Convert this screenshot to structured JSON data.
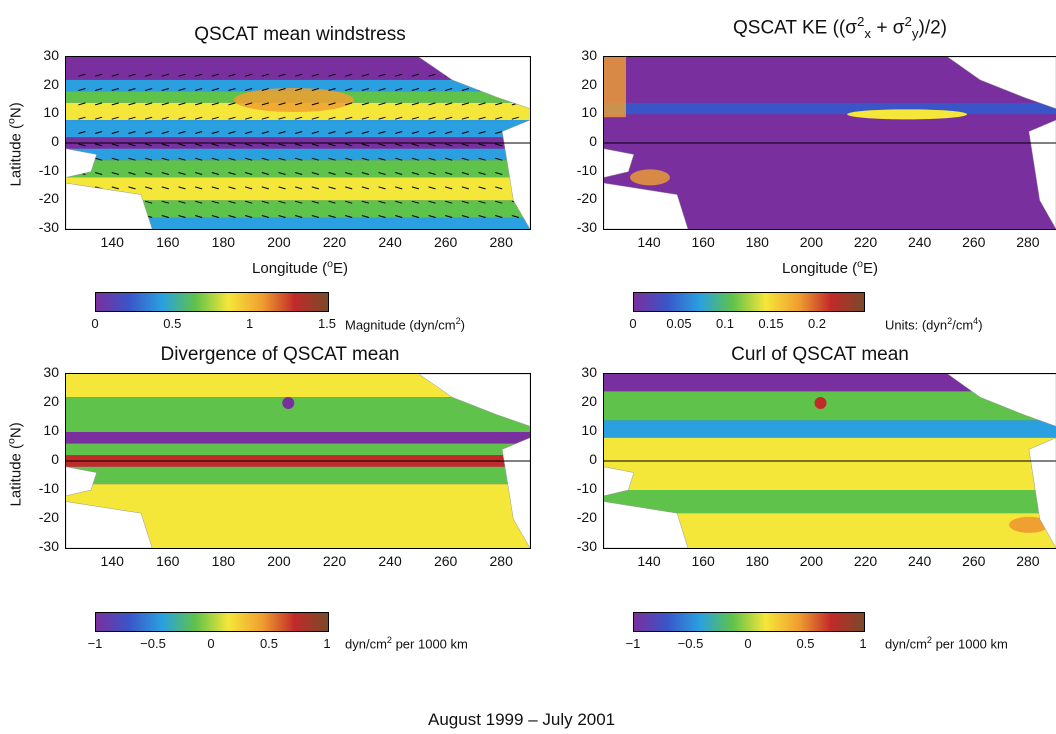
{
  "chart_data": [
    {
      "type": "heatmap",
      "title": "QSCAT mean windstress",
      "xlabel": "Longitude (°E)",
      "ylabel": "Latitude (°N)",
      "xlim": [
        123,
        290
      ],
      "ylim": [
        -30,
        30
      ],
      "xticks": [
        "140",
        "160",
        "180",
        "200",
        "220",
        "240",
        "260",
        "280"
      ],
      "yticks": [
        "30",
        "20",
        "10",
        "0",
        "-10",
        "-20",
        "-30"
      ],
      "colorbar": {
        "ticks": [
          "0",
          "0.5",
          "1",
          "1.5"
        ],
        "label": "Magnitude (dyn/cm",
        "label_sup": "2",
        "label_end": ")",
        "range": [
          0,
          1.5
        ]
      },
      "overlay": "wind vectors"
    },
    {
      "type": "heatmap",
      "title": "QSCAT KE",
      "xlabel": "Longitude (°E)",
      "ylabel": "",
      "xlim": [
        123,
        290
      ],
      "ylim": [
        -30,
        30
      ],
      "xticks": [
        "140",
        "160",
        "180",
        "200",
        "220",
        "240",
        "260",
        "280"
      ],
      "yticks": [
        "30",
        "20",
        "10",
        "0",
        "-10",
        "-20",
        "-30"
      ],
      "colorbar": {
        "ticks": [
          "0",
          "0.05",
          "0.1",
          "0.15",
          "0.2"
        ],
        "label": "Units: (dyn",
        "label_sup": "2",
        "label_mid": "/cm",
        "label_sup2": "4",
        "label_end": ")",
        "range": [
          0,
          0.25
        ]
      }
    },
    {
      "type": "heatmap",
      "title": "Divergence of QSCAT mean",
      "xlabel": "",
      "ylabel": "Latitude (°N)",
      "xlim": [
        123,
        290
      ],
      "ylim": [
        -30,
        30
      ],
      "xticks": [
        "140",
        "160",
        "180",
        "200",
        "220",
        "240",
        "260",
        "280"
      ],
      "yticks": [
        "30",
        "20",
        "10",
        "0",
        "-10",
        "-20",
        "-30"
      ],
      "colorbar": {
        "ticks": [
          "−1",
          "−0.5",
          "0",
          "0.5",
          "1"
        ],
        "label": "dyn/cm",
        "label_sup": "2",
        "label_end": " per 1000 km",
        "range": [
          -1,
          1
        ]
      }
    },
    {
      "type": "heatmap",
      "title": "Curl of QSCAT mean",
      "xlabel": "",
      "ylabel": "",
      "xlim": [
        123,
        290
      ],
      "ylim": [
        -30,
        30
      ],
      "xticks": [
        "140",
        "160",
        "180",
        "200",
        "220",
        "240",
        "260",
        "280"
      ],
      "yticks": [
        "30",
        "20",
        "10",
        "0",
        "-10",
        "-20",
        "-30"
      ],
      "colorbar": {
        "ticks": [
          "−1",
          "−0.5",
          "0",
          "0.5",
          "1"
        ],
        "label": "dyn/cm",
        "label_sup": "2",
        "label_end": " per 1000 km",
        "range": [
          -1,
          1
        ]
      }
    }
  ],
  "labels": {
    "lat_prefix": "Latitude (",
    "lat_sup": "o",
    "lat_suffix": "N)",
    "lon_prefix": "Longitude (",
    "lon_sup": "o",
    "lon_suffix": "E)",
    "ke_title_prefix": "QSCAT KE ((σ",
    "ke_sx": "x",
    "ke_plus": " + σ",
    "ke_sy": "y",
    "ke_end": ")/2)",
    "ke_sup": "2"
  },
  "footer": "August 1999 – July 2001",
  "colors": {
    "purple": "#7a2f9e",
    "blue": "#2aa0e0",
    "green": "#5fc24a",
    "yellow": "#f5e63a",
    "orange": "#f0a030",
    "red": "#c02a2a",
    "brown": "#7a4a2a",
    "land": "#ffffff"
  }
}
